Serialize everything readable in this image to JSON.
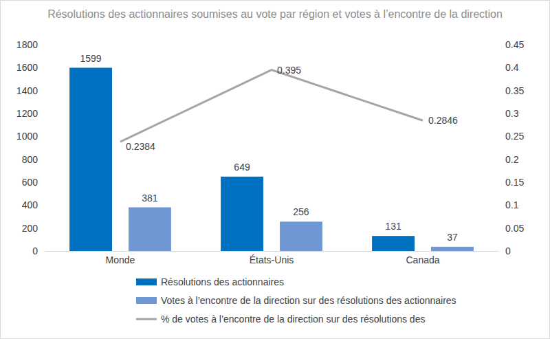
{
  "chart_data": {
    "type": "bar",
    "title": "Résolutions des actionnaires soumises au vote par région et votes à l’encontre de la direction",
    "categories": [
      "Monde",
      "États-Unis",
      "Canada"
    ],
    "series": [
      {
        "name": "Résolutions des actionnaires",
        "color": "#0070c0",
        "values": [
          1599,
          649,
          131
        ]
      },
      {
        "name": "Votes à l’encontre de la direction sur des résolutions des actionnaires",
        "color": "#6f97d3",
        "values": [
          381,
          256,
          37
        ]
      },
      {
        "name": "% de votes à l’encontre de la direction sur des résolutions des",
        "color": "#a5a5a5",
        "type": "line",
        "axis": "y2",
        "values": [
          0.2384,
          0.395,
          0.2846
        ]
      }
    ],
    "ylim": [
      0,
      1800
    ],
    "yticks": [
      0,
      200,
      400,
      600,
      800,
      1000,
      1200,
      1400,
      1600,
      1800
    ],
    "y2lim": [
      0,
      0.45
    ],
    "y2ticks": [
      0,
      0.05,
      0.1,
      0.15,
      0.2,
      0.25,
      0.3,
      0.35,
      0.4,
      0.45
    ],
    "data_labels": true,
    "grid": false,
    "legend": "bottom"
  }
}
